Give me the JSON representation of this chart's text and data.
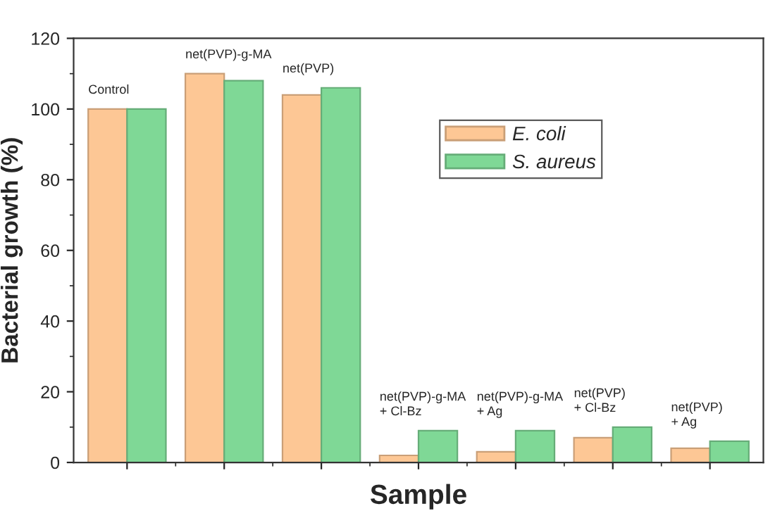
{
  "chart_data": {
    "type": "bar",
    "xlabel": "Sample",
    "ylabel": "Bacterial growth (%)",
    "categories": [
      null,
      null,
      null,
      null,
      null,
      null,
      null
    ],
    "annotations": [
      "Control",
      "net(PVP)-g-MA",
      "net(PVP)",
      "net(PVP)-g-MA\n+ Cl-Bz",
      "net(PVP)-g-MA\n+ Ag",
      "net(PVP)\n+ Cl-Bz",
      "net(PVP)\n+ Ag"
    ],
    "series": [
      {
        "name": "E. coli",
        "color": "#fdc795",
        "values": [
          100,
          110,
          104,
          2,
          3,
          7,
          4
        ]
      },
      {
        "name": "S. aureus",
        "color": "#7fd896",
        "values": [
          100,
          108,
          106,
          9,
          9,
          10,
          6
        ]
      }
    ],
    "ylim": [
      0,
      120
    ],
    "yticks": [
      0,
      20,
      40,
      60,
      80,
      100,
      120
    ],
    "legend": "top right",
    "grid": false
  }
}
